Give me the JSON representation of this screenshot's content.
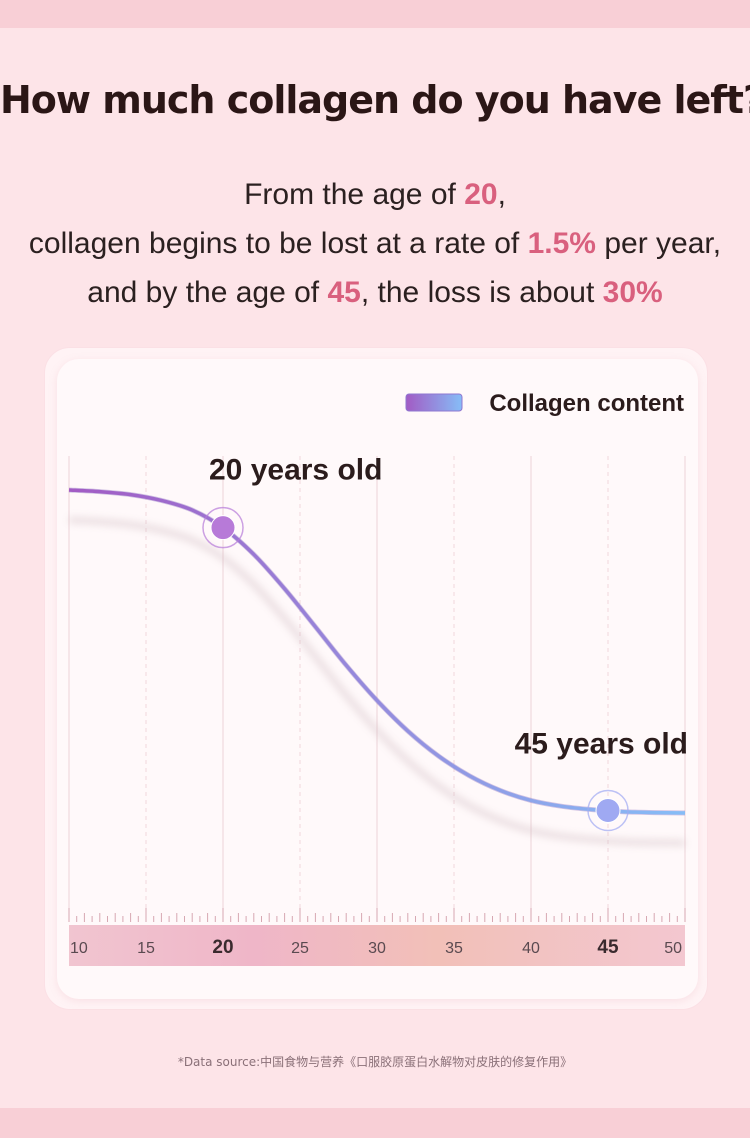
{
  "page": {
    "title": "How much collagen do you have left?",
    "intro": {
      "line1_prefix": "From the age of ",
      "line1_value": "20",
      "line1_suffix": ",",
      "line2_prefix": "collagen begins to be lost at a rate of ",
      "line2_value": "1.5%",
      "line2_suffix": " per year,",
      "line3_prefix": "and by the age of ",
      "line3_value": "45",
      "line3_mid": ", the loss is about ",
      "line3_value2": "30%"
    },
    "source": "*Data source:中国食物与营养《口服胶原蛋白水解物对皮肤的修复作用》"
  },
  "colors": {
    "accent": "#d9607e",
    "curve_start": "#a25bc4",
    "curve_end": "#86bdf7"
  },
  "chart_data": {
    "type": "line",
    "title": "",
    "xlabel": "",
    "ylabel": "",
    "legend": {
      "label": "Collagen content",
      "position": "top-right"
    },
    "x_ticks": [
      10,
      15,
      20,
      25,
      30,
      35,
      40,
      45,
      50
    ],
    "x_ticks_bold": [
      20,
      45
    ],
    "xlim": [
      10,
      50
    ],
    "ylim": [
      0,
      100
    ],
    "grid": true,
    "series": [
      {
        "name": "Collagen content",
        "x": [
          10,
          12,
          14,
          16,
          18,
          20,
          22,
          24,
          26,
          28,
          30,
          32,
          34,
          36,
          38,
          40,
          42,
          44,
          46,
          48,
          50
        ],
        "y": [
          100,
          99.6,
          98.9,
          97.5,
          95.2,
          91,
          84.6,
          76.4,
          67.3,
          58.1,
          49.7,
          42.4,
          36.4,
          31.7,
          28.2,
          25.8,
          24.4,
          23.6,
          23.1,
          22.9,
          22.8
        ]
      }
    ],
    "annotations": [
      {
        "x": 20,
        "y": 91,
        "label": "20 years old"
      },
      {
        "x": 45,
        "y": 23.4,
        "label": "45 years old"
      }
    ]
  }
}
